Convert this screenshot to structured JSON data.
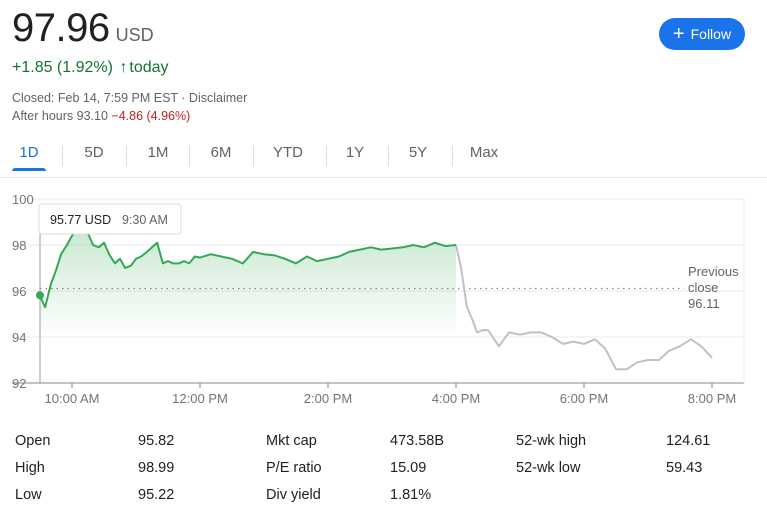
{
  "quote": {
    "price": "97.96",
    "currency": "USD",
    "change": "+1.85 (1.92%)",
    "change_arrow": "↑",
    "change_period": "today",
    "closed": "Closed: Feb 14, 7:59 PM EST · Disclaimer",
    "after_hours_label": "After hours 93.10",
    "after_hours_change": "−4.86 (4.96%)"
  },
  "follow_label": "Follow",
  "ranges": [
    "1D",
    "5D",
    "1M",
    "6M",
    "YTD",
    "1Y",
    "5Y",
    "Max"
  ],
  "active_range": "1D",
  "tooltip": {
    "value": "95.77 USD",
    "time": "9:30 AM"
  },
  "previous_close": {
    "label_line1": "Previous",
    "label_line2": "close",
    "value": "96.11"
  },
  "stats": [
    {
      "label": "Open",
      "value": "95.82"
    },
    {
      "label": "High",
      "value": "98.99"
    },
    {
      "label": "Low",
      "value": "95.22"
    },
    {
      "label": "Mkt cap",
      "value": "473.58B"
    },
    {
      "label": "P/E ratio",
      "value": "15.09"
    },
    {
      "label": "Div yield",
      "value": "1.81%"
    },
    {
      "label": "52-wk high",
      "value": "124.61"
    },
    {
      "label": "52-wk low",
      "value": "59.43"
    }
  ],
  "colors": {
    "up": "#34a853",
    "after_hours": "#bdc1c6",
    "accent": "#1a73e8",
    "neg": "#c5221f"
  },
  "chart_data": {
    "type": "line",
    "y_ticks": [
      100,
      98,
      96,
      94,
      92
    ],
    "x_ticks": [
      "10:00 AM",
      "12:00 PM",
      "2:00 PM",
      "4:00 PM",
      "6:00 PM",
      "8:00 PM"
    ],
    "ylim": [
      92,
      100
    ],
    "xlim_hours": [
      9.5,
      20.5
    ],
    "previous_close": 96.11,
    "series": [
      {
        "session": "regular",
        "x": [
          9.5,
          9.58,
          9.67,
          9.75,
          9.83,
          9.92,
          10.0,
          10.08,
          10.17,
          10.25,
          10.33,
          10.42,
          10.5,
          10.58,
          10.67,
          10.75,
          10.83,
          10.92,
          11.0,
          11.08,
          11.17,
          11.25,
          11.33,
          11.42,
          11.5,
          11.58,
          11.67,
          11.75,
          11.83,
          11.92,
          12.0,
          12.17,
          12.33,
          12.5,
          12.67,
          12.83,
          13.0,
          13.17,
          13.33,
          13.5,
          13.67,
          13.83,
          14.0,
          14.17,
          14.33,
          14.5,
          14.67,
          14.83,
          15.0,
          15.17,
          15.33,
          15.5,
          15.67,
          15.83,
          16.0
        ],
        "y": [
          95.77,
          95.3,
          96.3,
          96.9,
          97.6,
          98.0,
          98.4,
          98.7,
          98.99,
          98.5,
          98.0,
          97.9,
          98.1,
          97.6,
          97.2,
          97.4,
          97.0,
          97.1,
          97.4,
          97.5,
          97.7,
          97.9,
          98.1,
          97.2,
          97.3,
          97.2,
          97.2,
          97.3,
          97.2,
          97.5,
          97.45,
          97.6,
          97.5,
          97.4,
          97.2,
          97.7,
          97.6,
          97.55,
          97.4,
          97.2,
          97.5,
          97.3,
          97.4,
          97.5,
          97.7,
          97.8,
          97.9,
          97.8,
          97.85,
          97.9,
          98.0,
          97.9,
          98.1,
          97.95,
          98.0
        ]
      },
      {
        "session": "after_hours",
        "x": [
          16.0,
          16.08,
          16.17,
          16.25,
          16.33,
          16.42,
          16.5,
          16.67,
          16.83,
          17.0,
          17.17,
          17.33,
          17.5,
          17.67,
          17.83,
          18.0,
          18.17,
          18.33,
          18.5,
          18.67,
          18.83,
          19.0,
          19.17,
          19.33,
          19.5,
          19.67,
          19.83,
          20.0
        ],
        "y": [
          98.0,
          97.0,
          95.3,
          94.8,
          94.2,
          94.3,
          94.3,
          93.6,
          94.2,
          94.1,
          94.2,
          94.2,
          94.0,
          93.7,
          93.8,
          93.7,
          93.9,
          93.5,
          92.6,
          92.6,
          92.9,
          93.0,
          93.0,
          93.4,
          93.6,
          93.9,
          93.6,
          93.1
        ]
      }
    ]
  }
}
